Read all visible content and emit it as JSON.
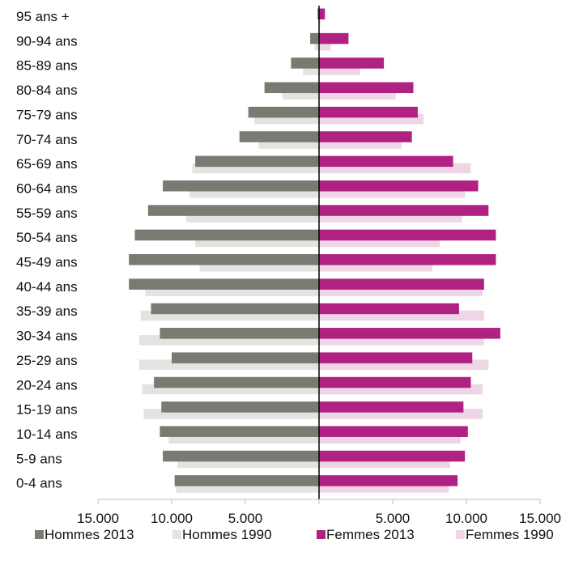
{
  "chart_data": {
    "type": "bar",
    "orientation": "horizontal",
    "layout": "population-pyramid",
    "categories": [
      "0-4 ans",
      "5-9 ans",
      "10-14 ans",
      "15-19 ans",
      "20-24 ans",
      "25-29 ans",
      "30-34 ans",
      "35-39 ans",
      "40-44 ans",
      "45-49 ans",
      "50-54 ans",
      "55-59 ans",
      "60-64 ans",
      "65-69 ans",
      "70-74 ans",
      "75-79 ans",
      "80-84 ans",
      "85-89 ans",
      "90-94 ans",
      "95 ans +"
    ],
    "series": [
      {
        "name": "Hommes 2013",
        "side": "left",
        "color": "#7a7a72",
        "values": [
          9800,
          10600,
          10800,
          10700,
          11200,
          10000,
          10800,
          11400,
          12900,
          12900,
          12500,
          11600,
          10600,
          8400,
          5400,
          4800,
          3700,
          1900,
          600,
          100
        ]
      },
      {
        "name": "Hommes 1990",
        "side": "left",
        "color": "#e3e3e1",
        "values": [
          9700,
          9600,
          10200,
          11900,
          12000,
          12200,
          12200,
          12100,
          11800,
          8100,
          8400,
          9000,
          8800,
          8600,
          4100,
          4400,
          2500,
          1100,
          300,
          0
        ]
      },
      {
        "name": "Femmes 2013",
        "side": "right",
        "color": "#b02282",
        "values": [
          9400,
          9900,
          10100,
          9800,
          10300,
          10400,
          12300,
          9500,
          11200,
          12000,
          12000,
          11500,
          10800,
          9100,
          6300,
          6700,
          6400,
          4400,
          2000,
          400
        ]
      },
      {
        "name": "Femmes 1990",
        "side": "right",
        "color": "#efd6e6",
        "values": [
          8800,
          8900,
          9600,
          11100,
          11100,
          11500,
          11200,
          11200,
          11100,
          7700,
          8200,
          9700,
          9900,
          10300,
          5600,
          7100,
          5200,
          2800,
          800,
          100
        ]
      }
    ],
    "x_tick_labels": [
      "15.000",
      "10.000",
      "5.000",
      "",
      "5.000",
      "10.000",
      "15.000"
    ],
    "xlim": [
      -15000,
      15000
    ],
    "grid": false,
    "legend_position": "bottom"
  }
}
